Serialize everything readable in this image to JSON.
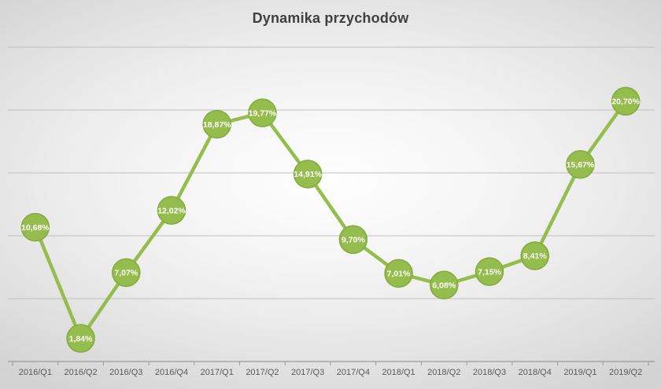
{
  "chart_data": {
    "type": "line",
    "title": "Dynamika przychodów",
    "categories": [
      "2016/Q1",
      "2016/Q2",
      "2016/Q3",
      "2016/Q4",
      "2017/Q1",
      "2017/Q2",
      "2017/Q3",
      "2017/Q4",
      "2018/Q1",
      "2018/Q2",
      "2018/Q3",
      "2018/Q4",
      "2019/Q1",
      "2019/Q2"
    ],
    "values": [
      10.68,
      1.84,
      7.07,
      12.02,
      18.87,
      19.77,
      14.91,
      9.7,
      7.01,
      6.08,
      7.15,
      8.41,
      15.67,
      20.7
    ],
    "point_labels": [
      "10,68%",
      "1,84%",
      "7,07%",
      "12,02%",
      "18,87%",
      "19,77%",
      "14,91%",
      "9,70%",
      "7,01%",
      "6,08%",
      "7,15%",
      "8,41%",
      "15,67%",
      "20,70%"
    ],
    "xlabel": "",
    "ylabel": "",
    "ylim": [
      0,
      25
    ],
    "gridline_values": [
      5,
      10,
      15,
      20,
      25
    ],
    "grid": true,
    "legend_position": "none",
    "colors": {
      "line": "#94bd4d",
      "marker_fill": "#94bd4d",
      "marker_stroke": "#82ab3c",
      "point_label_text": "#ffffff",
      "gridline": "#bfbfbf",
      "axis_line": "#9a9a9a",
      "axis_label_text": "#595959",
      "title_text": "#3f3f3f"
    }
  }
}
